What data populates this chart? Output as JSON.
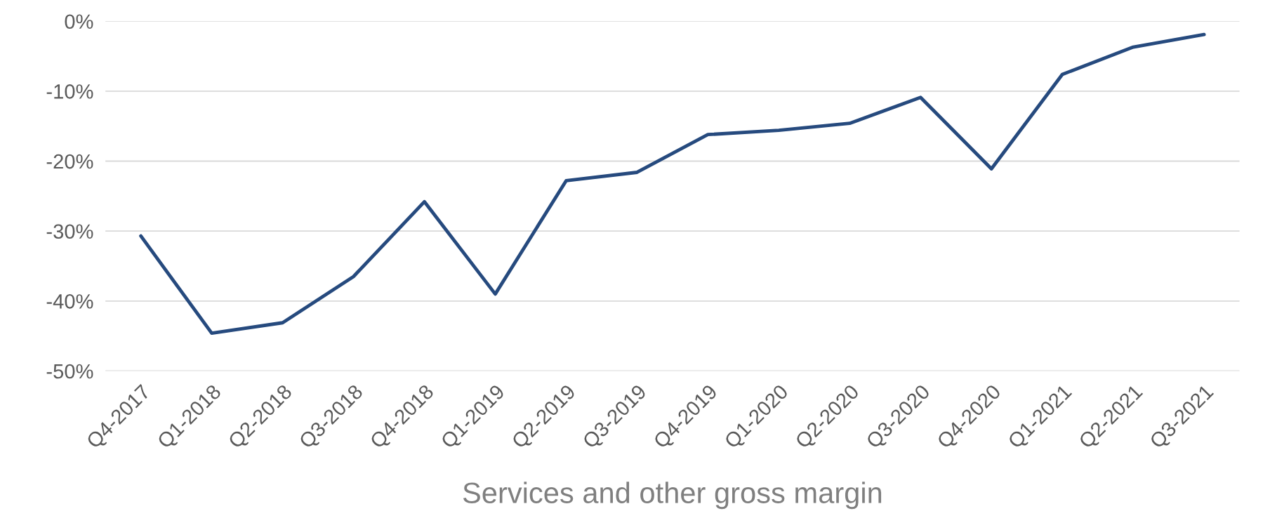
{
  "chart_data": {
    "type": "line",
    "xlabel": "Services and other gross margin",
    "categories": [
      "Q4-2017",
      "Q1-2018",
      "Q2-2018",
      "Q3-2018",
      "Q4-2018",
      "Q1-2019",
      "Q2-2019",
      "Q3-2019",
      "Q4-2019",
      "Q1-2020",
      "Q2-2020",
      "Q3-2020",
      "Q4-2020",
      "Q1-2021",
      "Q2-2021",
      "Q3-2021"
    ],
    "series": [
      {
        "color": "#264a7e",
        "values": [
          -30.7,
          -44.6,
          -43.1,
          -36.5,
          -25.8,
          -39.0,
          -22.8,
          -21.6,
          -16.2,
          -15.6,
          -14.6,
          -10.9,
          -21.1,
          -7.6,
          -3.7,
          -1.9
        ]
      }
    ],
    "ylim": [
      -50,
      0
    ],
    "yticks": [
      {
        "value": -50,
        "label": "-50%"
      },
      {
        "value": -40,
        "label": "-40%"
      },
      {
        "value": -30,
        "label": "-30%"
      },
      {
        "value": -20,
        "label": "-20%"
      },
      {
        "value": -10,
        "label": "-10%"
      },
      {
        "value": 0,
        "label": "0%"
      }
    ],
    "grid": "y",
    "marker": "none",
    "line_style": "solid",
    "legend": false
  }
}
